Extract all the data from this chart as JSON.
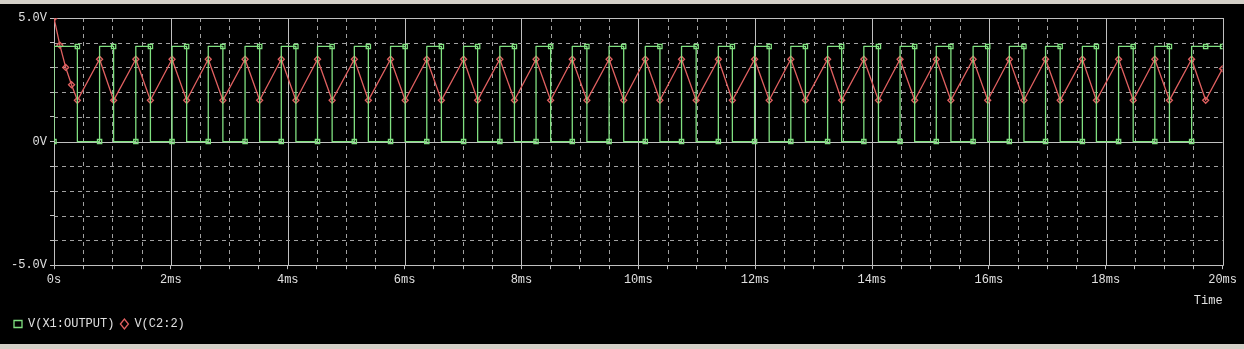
{
  "chart_data": {
    "type": "line",
    "xlabel": "Time",
    "legend": "bottom",
    "grid": true,
    "xlim": [
      0,
      20
    ],
    "ylim": [
      -5,
      5
    ],
    "xticks": [
      {
        "value": 0,
        "label": "0s"
      },
      {
        "value": 0.5,
        "label": null
      },
      {
        "value": 1,
        "label": null
      },
      {
        "value": 1.5,
        "label": null
      },
      {
        "value": 2,
        "label": "2ms"
      },
      {
        "value": 2.5,
        "label": null
      },
      {
        "value": 3,
        "label": null
      },
      {
        "value": 3.5,
        "label": null
      },
      {
        "value": 4,
        "label": "4ms"
      },
      {
        "value": 4.5,
        "label": null
      },
      {
        "value": 5,
        "label": null
      },
      {
        "value": 5.5,
        "label": null
      },
      {
        "value": 6,
        "label": "6ms"
      },
      {
        "value": 6.5,
        "label": null
      },
      {
        "value": 7,
        "label": null
      },
      {
        "value": 7.5,
        "label": null
      },
      {
        "value": 8,
        "label": "8ms"
      },
      {
        "value": 8.5,
        "label": null
      },
      {
        "value": 9,
        "label": null
      },
      {
        "value": 9.5,
        "label": null
      },
      {
        "value": 10,
        "label": "10ms"
      },
      {
        "value": 10.5,
        "label": null
      },
      {
        "value": 11,
        "label": null
      },
      {
        "value": 11.5,
        "label": null
      },
      {
        "value": 12,
        "label": "12ms"
      },
      {
        "value": 12.5,
        "label": null
      },
      {
        "value": 13,
        "label": null
      },
      {
        "value": 13.5,
        "label": null
      },
      {
        "value": 14,
        "label": "14ms"
      },
      {
        "value": 14.5,
        "label": null
      },
      {
        "value": 15,
        "label": null
      },
      {
        "value": 15.5,
        "label": null
      },
      {
        "value": 16,
        "label": "16ms"
      },
      {
        "value": 16.5,
        "label": null
      },
      {
        "value": 17,
        "label": null
      },
      {
        "value": 17.5,
        "label": null
      },
      {
        "value": 18,
        "label": "18ms"
      },
      {
        "value": 18.5,
        "label": null
      },
      {
        "value": 19,
        "label": null
      },
      {
        "value": 19.5,
        "label": null
      },
      {
        "value": 20,
        "label": "20ms"
      }
    ],
    "yticks": [
      {
        "value": -5,
        "label": "-5.0V"
      },
      {
        "value": -4,
        "label": null
      },
      {
        "value": -3,
        "label": null
      },
      {
        "value": -2,
        "label": null
      },
      {
        "value": -1,
        "label": null
      },
      {
        "value": 0,
        "label": "0V"
      },
      {
        "value": 1,
        "label": null
      },
      {
        "value": 2,
        "label": null
      },
      {
        "value": 3,
        "label": null
      },
      {
        "value": 4,
        "label": null
      },
      {
        "value": 5,
        "label": "5.0V"
      }
    ],
    "series": [
      {
        "name": "V(X1:OUTPUT)",
        "type": "step",
        "color": "#80e080",
        "marker": "square",
        "x": [
          0,
          0.4,
          0.78,
          1.02,
          1.4,
          1.65,
          2.02,
          2.27,
          2.64,
          2.89,
          3.27,
          3.52,
          3.89,
          4.14,
          4.51,
          4.76,
          5.14,
          5.38,
          5.76,
          6.01,
          6.38,
          6.63,
          7.01,
          7.25,
          7.63,
          7.88,
          8.25,
          8.5,
          8.87,
          9.12,
          9.5,
          9.75,
          10.12,
          10.37,
          10.74,
          10.99,
          11.37,
          11.61,
          11.99,
          12.24,
          12.61,
          12.86,
          13.24,
          13.48,
          13.86,
          14.11,
          14.48,
          14.73,
          15.1,
          15.35,
          15.73,
          15.98,
          16.35,
          16.6,
          16.97,
          17.22,
          17.6,
          17.84,
          18.22,
          18.47,
          18.84,
          19.09,
          19.47,
          19.71,
          20
        ],
        "values": [
          0,
          3.85,
          0,
          3.85,
          0,
          3.85,
          0,
          3.85,
          0,
          3.85,
          0,
          3.85,
          0,
          3.85,
          0,
          3.85,
          0,
          3.85,
          0,
          3.85,
          0,
          3.85,
          0,
          3.85,
          0,
          3.85,
          0,
          3.85,
          0,
          3.85,
          0,
          3.85,
          0,
          3.85,
          0,
          3.85,
          0,
          3.85,
          0,
          3.85,
          0,
          3.85,
          0,
          3.85,
          0,
          3.85,
          0,
          3.85,
          0,
          3.85,
          0,
          3.85,
          0,
          3.85,
          0,
          3.85,
          0,
          3.85,
          0,
          3.85,
          0,
          3.85,
          0,
          3.85,
          3.85
        ]
      },
      {
        "name": "V(C2:2)",
        "color": "#e06060",
        "marker": "diamond",
        "x": [
          0,
          0.1,
          0.2,
          0.3,
          0.4,
          0.78,
          1.02,
          1.4,
          1.65,
          2.02,
          2.27,
          2.64,
          2.89,
          3.27,
          3.52,
          3.89,
          4.14,
          4.51,
          4.76,
          5.14,
          5.38,
          5.76,
          6.01,
          6.38,
          6.63,
          7.01,
          7.25,
          7.63,
          7.88,
          8.25,
          8.5,
          8.87,
          9.12,
          9.5,
          9.75,
          10.12,
          10.37,
          10.74,
          10.99,
          11.37,
          11.61,
          11.99,
          12.24,
          12.61,
          12.86,
          13.24,
          13.48,
          13.86,
          14.11,
          14.48,
          14.73,
          15.1,
          15.35,
          15.73,
          15.98,
          16.35,
          16.6,
          16.97,
          17.22,
          17.6,
          17.84,
          18.22,
          18.47,
          18.84,
          19.09,
          19.47,
          19.71,
          20
        ],
        "values": [
          5,
          3.9,
          3.0,
          2.3,
          1.67,
          3.33,
          1.67,
          3.33,
          1.67,
          3.33,
          1.67,
          3.33,
          1.67,
          3.33,
          1.67,
          3.33,
          1.67,
          3.33,
          1.67,
          3.33,
          1.67,
          3.33,
          1.67,
          3.33,
          1.67,
          3.33,
          1.67,
          3.33,
          1.67,
          3.33,
          1.67,
          3.33,
          1.67,
          3.33,
          1.67,
          3.33,
          1.67,
          3.33,
          1.67,
          3.33,
          1.67,
          3.33,
          1.67,
          3.33,
          1.67,
          3.33,
          1.67,
          3.33,
          1.67,
          3.33,
          1.67,
          3.33,
          1.67,
          3.33,
          1.67,
          3.33,
          1.67,
          3.33,
          1.67,
          3.33,
          1.67,
          3.33,
          1.67,
          3.33,
          1.67,
          3.33,
          1.67,
          2.95
        ]
      }
    ]
  }
}
